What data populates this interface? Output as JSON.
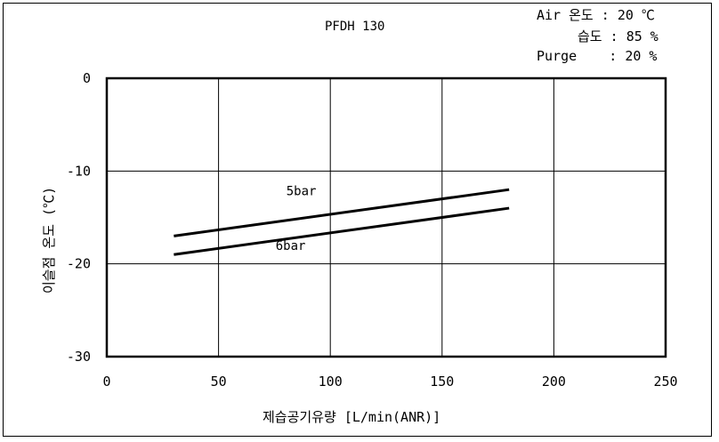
{
  "conditions": {
    "air_temp": "Air 온도 : 20 ℃",
    "humidity": "습도 : 85 %",
    "purge": "Purge    : 20 %"
  },
  "chart_data": {
    "type": "line",
    "title": "PFDH 130",
    "xlabel": "제습공기유량 [L/min(ANR)]",
    "ylabel": "이슬점 온도 (℃)",
    "xlim": [
      0,
      250
    ],
    "ylim": [
      -30,
      0
    ],
    "xticks": [
      0,
      50,
      100,
      150,
      200,
      250
    ],
    "yticks": [
      0,
      -10,
      -20,
      -30
    ],
    "grid": true,
    "series": [
      {
        "name": "5bar",
        "x": [
          30,
          180
        ],
        "y": [
          -17,
          -12
        ]
      },
      {
        "name": "6bar",
        "x": [
          30,
          180
        ],
        "y": [
          -19,
          -14
        ]
      }
    ]
  }
}
